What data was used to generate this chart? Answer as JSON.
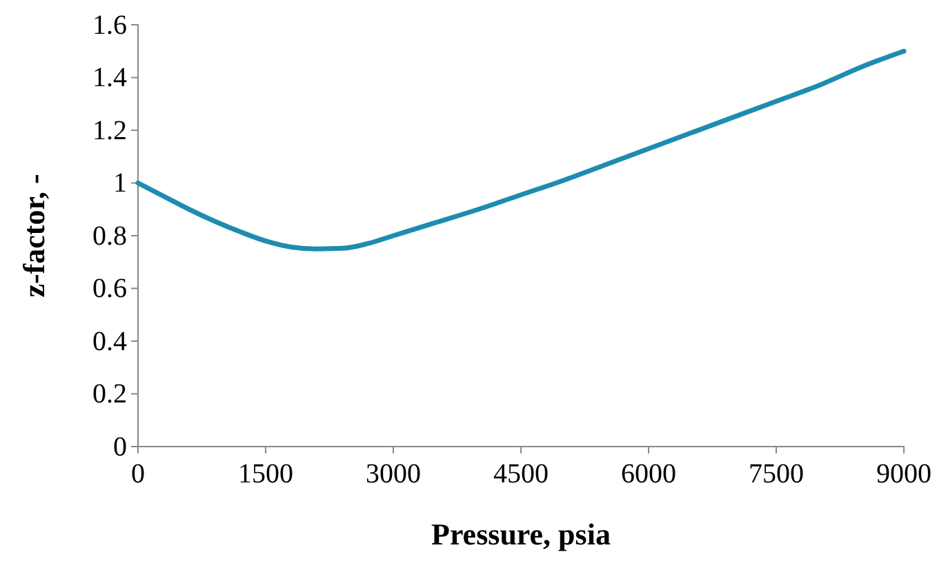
{
  "chart_data": {
    "type": "line",
    "xlabel": "Pressure, psia",
    "ylabel": "z-factor, -",
    "x": [
      0,
      300,
      600,
      900,
      1200,
      1500,
      1800,
      2100,
      2400,
      2700,
      3000,
      3500,
      4000,
      4500,
      5000,
      5500,
      6000,
      6500,
      7000,
      7500,
      8000,
      8500,
      9000
    ],
    "series": [
      {
        "color": "#1d8cb0",
        "values": [
          1.0,
          0.95,
          0.9,
          0.855,
          0.815,
          0.78,
          0.757,
          0.75,
          0.752,
          0.77,
          0.8,
          0.85,
          0.9,
          0.955,
          1.01,
          1.07,
          1.13,
          1.19,
          1.25,
          1.31,
          1.37,
          1.44,
          1.5
        ]
      }
    ],
    "xlim": [
      0,
      9000
    ],
    "xticks": [
      0,
      1500,
      3000,
      4500,
      6000,
      7500,
      9000
    ],
    "ylim": [
      0,
      1.6
    ],
    "yticks": [
      0,
      0.2,
      0.4,
      0.6,
      0.8,
      1,
      1.2,
      1.4,
      1.6
    ],
    "grid": false,
    "marker": "none",
    "line_style": "solid"
  }
}
